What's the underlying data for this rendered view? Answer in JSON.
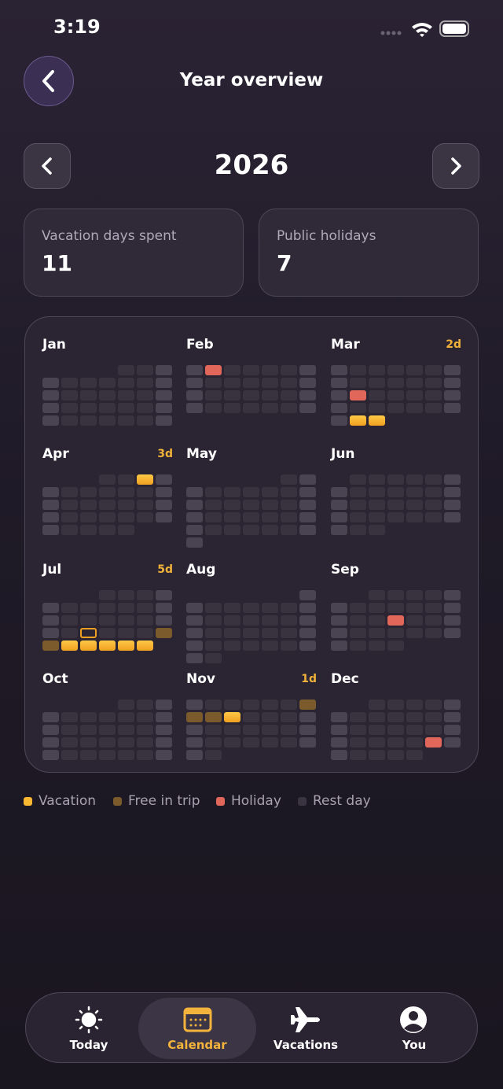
{
  "status_bar": {
    "time": "3:19"
  },
  "header": {
    "title": "Year overview"
  },
  "year_selector": {
    "year": "2026"
  },
  "stats": [
    {
      "label": "Vacation days spent",
      "value": "11"
    },
    {
      "label": "Public holidays",
      "value": "7"
    }
  ],
  "months": [
    {
      "name": "Jan"
    },
    {
      "name": "Feb"
    },
    {
      "name": "Mar",
      "badge": "2d"
    },
    {
      "name": "Apr",
      "badge": "3d"
    },
    {
      "name": "May"
    },
    {
      "name": "Jun"
    },
    {
      "name": "Jul",
      "badge": "5d"
    },
    {
      "name": "Aug"
    },
    {
      "name": "Sep"
    },
    {
      "name": "Oct"
    },
    {
      "name": "Nov",
      "badge": "1d"
    },
    {
      "name": "Dec"
    }
  ],
  "legend": [
    "Vacation",
    "Free in trip",
    "Holiday",
    "Rest day"
  ],
  "tab_bar": [
    {
      "label": "Today"
    },
    {
      "label": "Calendar"
    },
    {
      "label": "Vacations"
    },
    {
      "label": "You"
    }
  ]
}
